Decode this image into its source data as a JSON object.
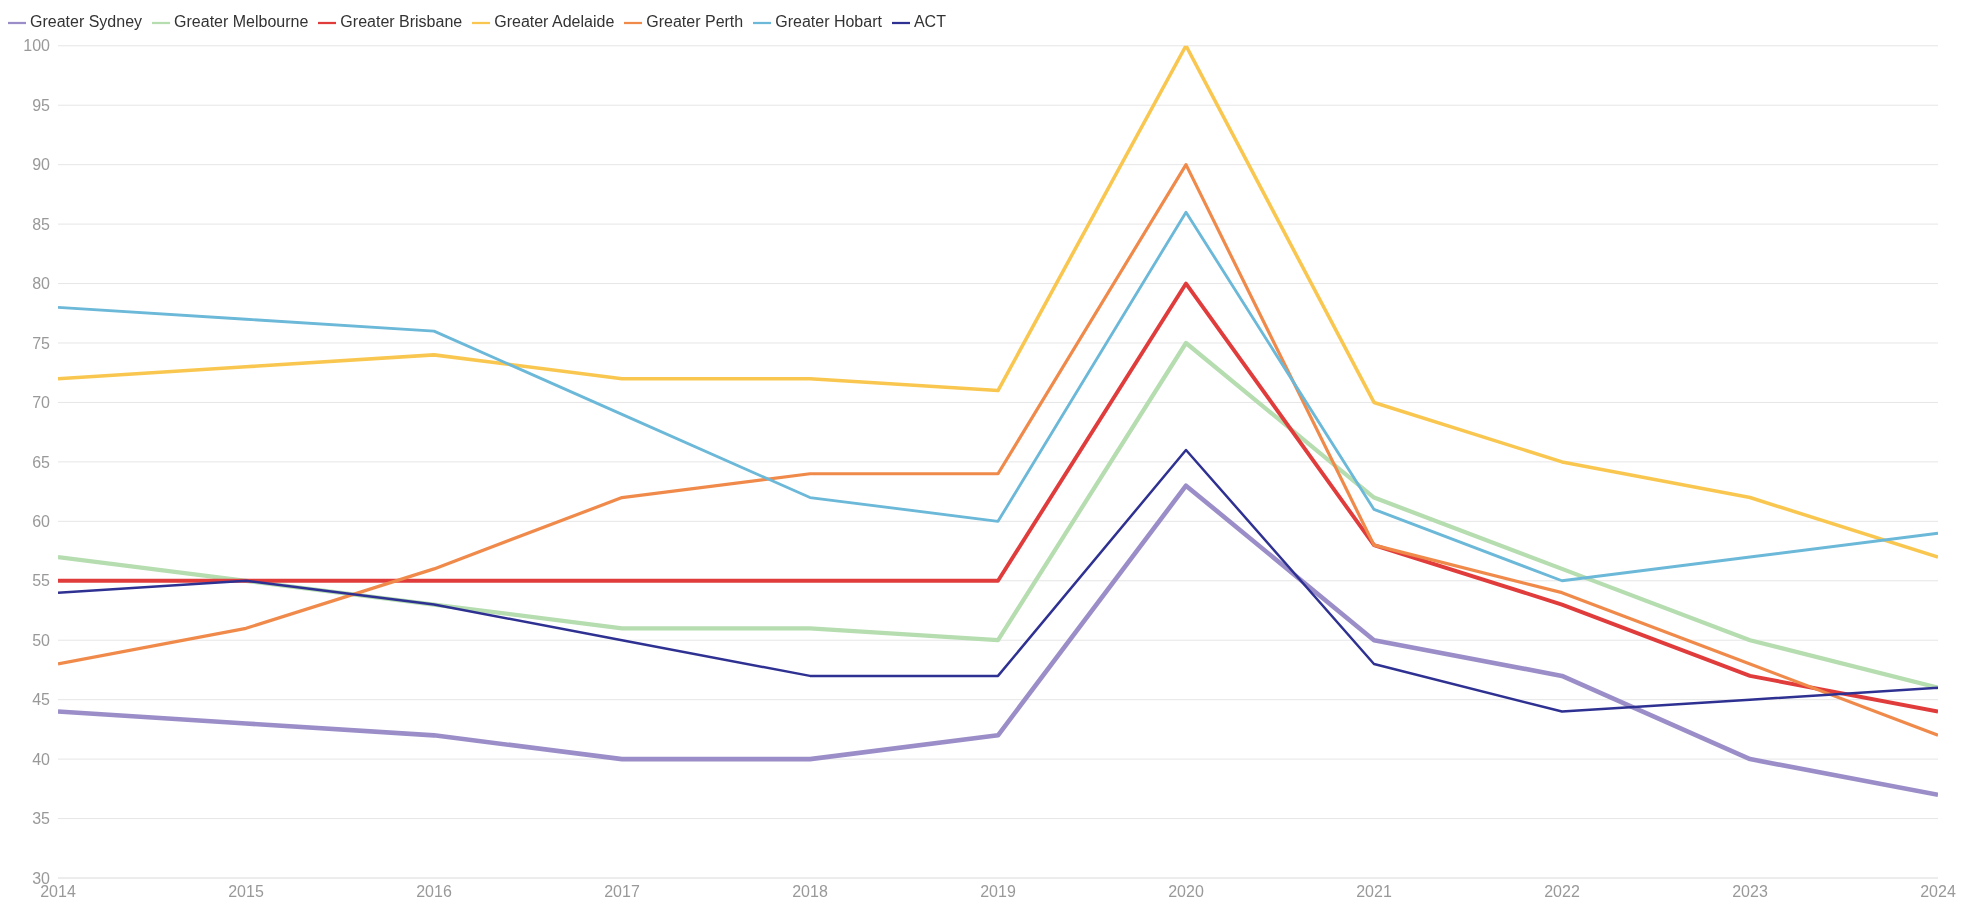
{
  "chart_data": {
    "type": "line",
    "x": [
      2014,
      2015,
      2016,
      2017,
      2018,
      2019,
      2020,
      2021,
      2022,
      2023,
      2024
    ],
    "xlim": [
      2014,
      2024
    ],
    "xticks": [
      2014,
      2015,
      2016,
      2017,
      2018,
      2019,
      2020,
      2021,
      2022,
      2023,
      2024
    ],
    "ylim": [
      30,
      100
    ],
    "yticks": [
      30,
      35,
      40,
      45,
      50,
      55,
      60,
      65,
      70,
      75,
      80,
      85,
      90,
      95,
      100
    ],
    "grid": "y",
    "legend": "top left",
    "marker": "none",
    "line_style": "solid",
    "series": [
      {
        "name": "Greater Sydney",
        "color": "#9b8ec8",
        "values": [
          44,
          43,
          42,
          40,
          40,
          42,
          63,
          50,
          47,
          40,
          37
        ]
      },
      {
        "name": "Greater Melbourne",
        "color": "#b5ddb0",
        "values": [
          57,
          55,
          53,
          51,
          51,
          50,
          75,
          62,
          56,
          50,
          46
        ]
      },
      {
        "name": "Greater Brisbane",
        "color": "#e03c3c",
        "values": [
          55,
          55,
          55,
          55,
          55,
          55,
          80,
          58,
          53,
          47,
          44
        ]
      },
      {
        "name": "Greater Adelaide",
        "color": "#f9c74f",
        "values": [
          72,
          73,
          74,
          72,
          72,
          71,
          100,
          70,
          65,
          62,
          57
        ]
      },
      {
        "name": "Greater Perth",
        "color": "#f08a4b",
        "values": [
          48,
          51,
          56,
          62,
          64,
          64,
          90,
          58,
          54,
          48,
          42
        ]
      },
      {
        "name": "Greater Hobart",
        "color": "#6bb8d8",
        "values": [
          78,
          77,
          76,
          69,
          62,
          60,
          86,
          61,
          55,
          57,
          59
        ]
      },
      {
        "name": "ACT",
        "color": "#2e3192",
        "values": [
          54,
          55,
          53,
          50,
          47,
          47,
          66,
          48,
          44,
          45,
          46
        ]
      }
    ]
  }
}
